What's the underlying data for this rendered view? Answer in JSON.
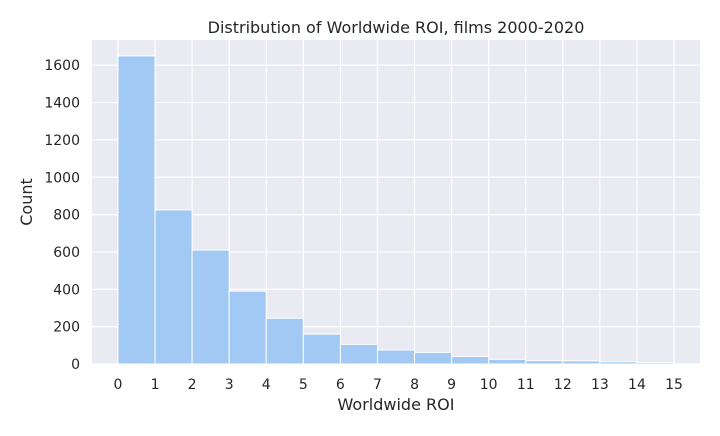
{
  "chart_data": {
    "type": "bar",
    "title": "Distribution of Worldwide ROI, films 2000-2020",
    "xlabel": "Worldwide ROI",
    "ylabel": "Count",
    "bin_edges": [
      0,
      1,
      2,
      3,
      4,
      5,
      6,
      7,
      8,
      9,
      10,
      11,
      12,
      13,
      14,
      15
    ],
    "values": [
      1650,
      825,
      610,
      390,
      245,
      160,
      105,
      75,
      62,
      40,
      25,
      18,
      17,
      12,
      8
    ],
    "xlim": [
      -0.7,
      15.7
    ],
    "ylim": [
      0,
      1735
    ],
    "xticks": [
      "0",
      "1",
      "2",
      "3",
      "4",
      "5",
      "6",
      "7",
      "8",
      "9",
      "10",
      "11",
      "12",
      "13",
      "14",
      "15"
    ],
    "yticks": [
      "0",
      "200",
      "400",
      "600",
      "800",
      "1000",
      "1200",
      "1400",
      "1600"
    ],
    "grid": true,
    "colors": {
      "bar": "#a1c9f4",
      "background": "#eaeaf2",
      "grid": "#ffffff",
      "bar_edge": "#ffffff"
    }
  }
}
